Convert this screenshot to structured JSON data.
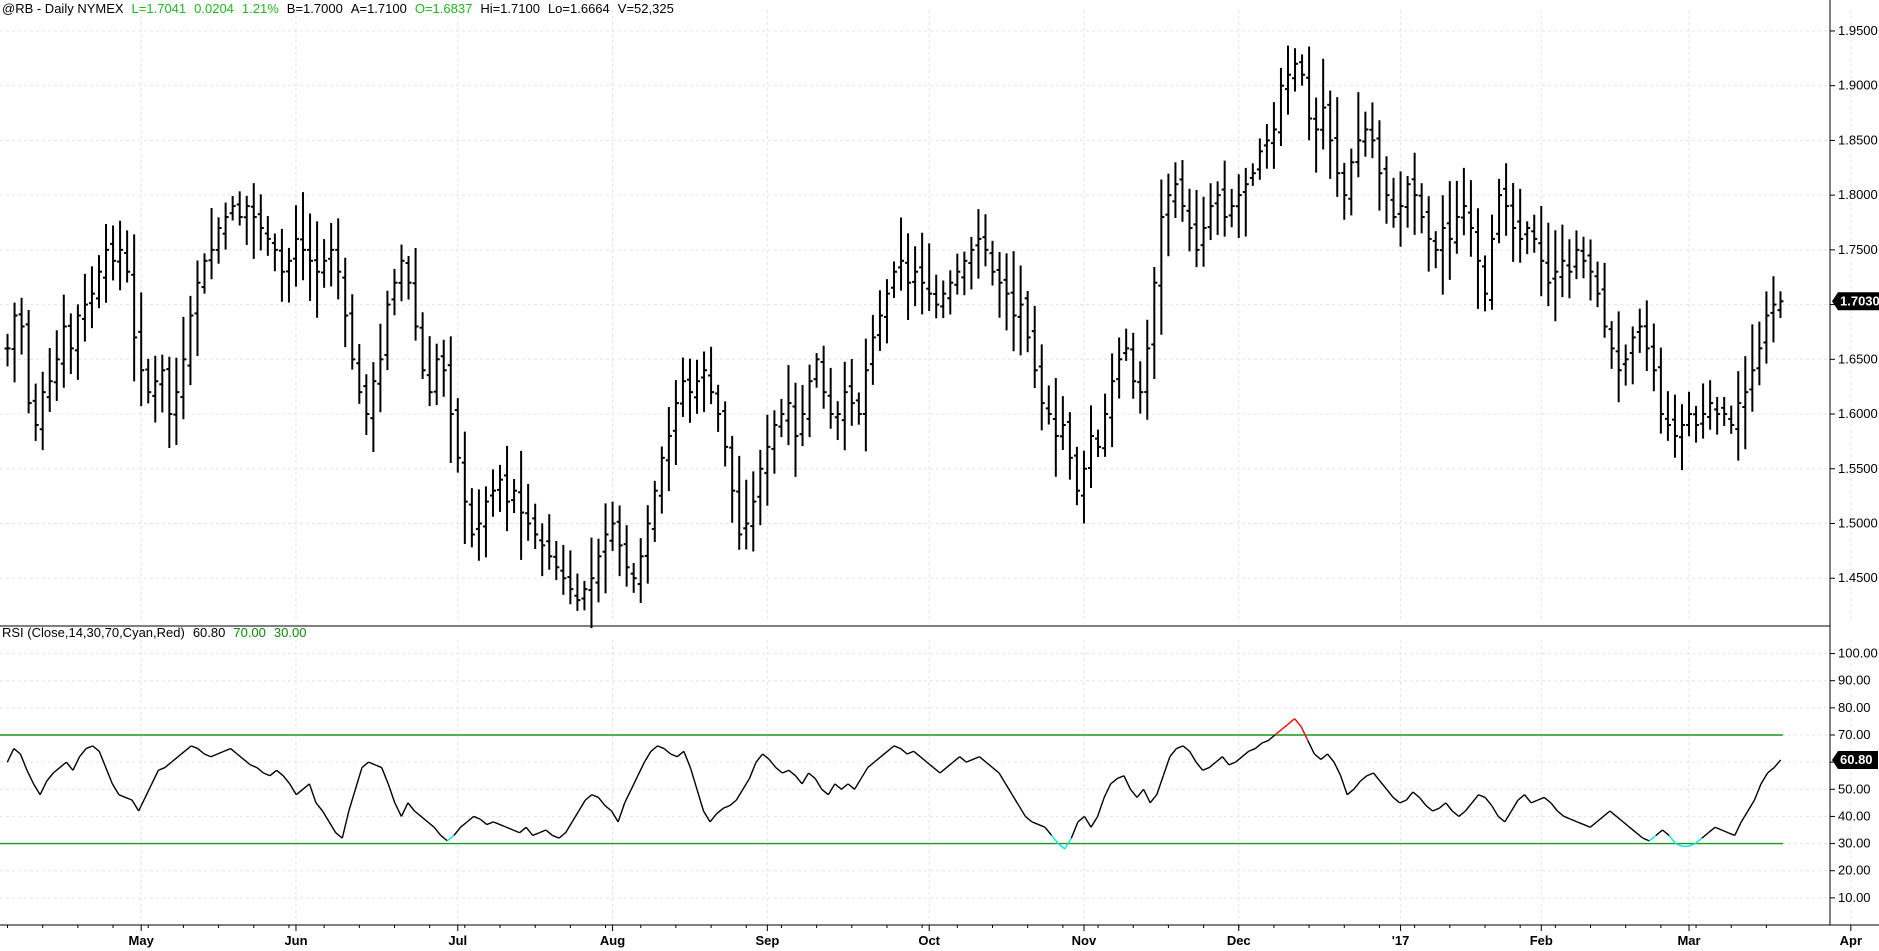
{
  "header": {
    "symbol": "@RB - Daily  NYMEX",
    "last": "L=1.7041",
    "change": "0.0204",
    "change_pct": "1.21%",
    "bid": "B=1.7000",
    "ask": "A=1.7100",
    "open": "O=1.6837",
    "high": "Hi=1.7100",
    "low": "Lo=1.6664",
    "volume": "V=52,325"
  },
  "rsi_header": {
    "label": "RSI (Close,14,30,70,Cyan,Red)",
    "value": "60.80",
    "overbought": "70.00",
    "oversold": "30.00"
  },
  "colors": {
    "bars": "#000000",
    "rsi_line": "#000000",
    "rsi_overbought": "#ff0000",
    "rsi_oversold": "#00e5e5",
    "levels": "#1a9a1a",
    "grid": "#e4e4e4",
    "highlight_green": "#1fb81f"
  },
  "chart_data": [
    {
      "type": "ohlc",
      "symbol": "@RB",
      "interval": "Daily",
      "ylim": [
        1.41,
        1.96
      ],
      "yticks": [
        "1.4500",
        "1.5000",
        "1.5500",
        "1.6000",
        "1.6500",
        "1.7000",
        "1.7500",
        "1.8000",
        "1.8500",
        "1.9000",
        "1.9500"
      ],
      "last_price_label": "1.7030",
      "last_price": 1.703,
      "xticks": [
        "May",
        "Jun",
        "Jul",
        "Aug",
        "Sep",
        "Oct",
        "Nov",
        "Dec",
        "'17",
        "Feb",
        "Mar",
        "Apr"
      ],
      "xtick_day_index": [
        19,
        41,
        64,
        86,
        108,
        131,
        153,
        175,
        198,
        218,
        239,
        262
      ],
      "closes": [
        1.66,
        1.69,
        1.68,
        1.61,
        1.59,
        1.62,
        1.63,
        1.65,
        1.68,
        1.66,
        1.69,
        1.7,
        1.71,
        1.73,
        1.75,
        1.74,
        1.75,
        1.73,
        1.67,
        1.64,
        1.62,
        1.63,
        1.64,
        1.6,
        1.62,
        1.65,
        1.69,
        1.72,
        1.74,
        1.75,
        1.77,
        1.78,
        1.79,
        1.78,
        1.79,
        1.78,
        1.77,
        1.76,
        1.75,
        1.73,
        1.74,
        1.76,
        1.75,
        1.74,
        1.73,
        1.74,
        1.75,
        1.73,
        1.69,
        1.65,
        1.62,
        1.6,
        1.63,
        1.65,
        1.7,
        1.72,
        1.74,
        1.72,
        1.68,
        1.64,
        1.62,
        1.65,
        1.64,
        1.6,
        1.56,
        1.52,
        1.49,
        1.5,
        1.52,
        1.53,
        1.54,
        1.52,
        1.53,
        1.51,
        1.5,
        1.49,
        1.48,
        1.47,
        1.46,
        1.45,
        1.44,
        1.43,
        1.44,
        1.45,
        1.47,
        1.49,
        1.5,
        1.48,
        1.46,
        1.45,
        1.47,
        1.5,
        1.53,
        1.56,
        1.58,
        1.61,
        1.63,
        1.62,
        1.63,
        1.64,
        1.62,
        1.6,
        1.57,
        1.53,
        1.49,
        1.5,
        1.52,
        1.55,
        1.57,
        1.59,
        1.6,
        1.61,
        1.58,
        1.6,
        1.63,
        1.65,
        1.62,
        1.6,
        1.6,
        1.62,
        1.61,
        1.6,
        1.64,
        1.67,
        1.69,
        1.71,
        1.73,
        1.74,
        1.72,
        1.73,
        1.72,
        1.71,
        1.7,
        1.71,
        1.72,
        1.73,
        1.74,
        1.75,
        1.76,
        1.75,
        1.73,
        1.72,
        1.71,
        1.69,
        1.7,
        1.67,
        1.64,
        1.61,
        1.6,
        1.58,
        1.59,
        1.56,
        1.53,
        1.55,
        1.58,
        1.57,
        1.6,
        1.63,
        1.65,
        1.66,
        1.63,
        1.62,
        1.66,
        1.72,
        1.78,
        1.8,
        1.81,
        1.79,
        1.77,
        1.75,
        1.77,
        1.79,
        1.8,
        1.78,
        1.79,
        1.8,
        1.81,
        1.82,
        1.84,
        1.85,
        1.86,
        1.9,
        1.91,
        1.92,
        1.91,
        1.87,
        1.86,
        1.88,
        1.85,
        1.82,
        1.8,
        1.83,
        1.85,
        1.86,
        1.85,
        1.82,
        1.8,
        1.78,
        1.79,
        1.81,
        1.8,
        1.78,
        1.76,
        1.75,
        1.77,
        1.76,
        1.78,
        1.79,
        1.77,
        1.74,
        1.71,
        1.76,
        1.8,
        1.79,
        1.77,
        1.76,
        1.77,
        1.76,
        1.74,
        1.72,
        1.73,
        1.74,
        1.73,
        1.75,
        1.74,
        1.73,
        1.71,
        1.68,
        1.66,
        1.64,
        1.65,
        1.67,
        1.68,
        1.66,
        1.64,
        1.6,
        1.59,
        1.58,
        1.59,
        1.6,
        1.59,
        1.6,
        1.61,
        1.6,
        1.6,
        1.59,
        1.61,
        1.62,
        1.64,
        1.66,
        1.69,
        1.7,
        1.703
      ],
      "xlabel": "",
      "ylabel": ""
    },
    {
      "type": "line",
      "name": "RSI (Close,14,30,70,Cyan,Red)",
      "ylim": [
        0,
        105
      ],
      "yticks": [
        "10.00",
        "20.00",
        "30.00",
        "40.00",
        "50.00",
        "60.00",
        "70.00",
        "80.00",
        "90.00",
        "100.00"
      ],
      "levels": [
        70,
        30
      ],
      "last_value_label": "60.80",
      "last_value": 60.8,
      "values": [
        60,
        65,
        63,
        57,
        52,
        48,
        53,
        56,
        58,
        60,
        57,
        62,
        65,
        66,
        64,
        58,
        52,
        48,
        47,
        46,
        42,
        47,
        52,
        57,
        58,
        60,
        62,
        64,
        66,
        65,
        63,
        62,
        63,
        64,
        65,
        63,
        61,
        59,
        58,
        56,
        55,
        57,
        55,
        52,
        48,
        50,
        52,
        45,
        42,
        38,
        34,
        32,
        42,
        50,
        58,
        60,
        59,
        58,
        52,
        45,
        40,
        45,
        42,
        40,
        38,
        36,
        33,
        31,
        33,
        36,
        38,
        40,
        39,
        37,
        38,
        37,
        36,
        35,
        34,
        36,
        33,
        34,
        35,
        33,
        32,
        34,
        38,
        42,
        46,
        48,
        47,
        44,
        42,
        38,
        45,
        50,
        55,
        60,
        64,
        66,
        65,
        63,
        62,
        64,
        58,
        50,
        42,
        38,
        41,
        43,
        44,
        46,
        50,
        54,
        60,
        63,
        61,
        58,
        56,
        57,
        55,
        52,
        56,
        54,
        50,
        48,
        52,
        50,
        52,
        50,
        54,
        58,
        60,
        62,
        64,
        66,
        65,
        63,
        64,
        62,
        60,
        58,
        56,
        58,
        60,
        62,
        60,
        61,
        62,
        60,
        58,
        56,
        52,
        48,
        44,
        40,
        38,
        37,
        36,
        33,
        30,
        28,
        32,
        38,
        40,
        36,
        40,
        47,
        52,
        54,
        55,
        50,
        47,
        50,
        45,
        48,
        55,
        62,
        65,
        66,
        64,
        60,
        57,
        58,
        60,
        62,
        59,
        60,
        62,
        64,
        65,
        67,
        68,
        70,
        72,
        74,
        76,
        73,
        68,
        63,
        61,
        63,
        60,
        55,
        48,
        50,
        53,
        55,
        56,
        53,
        50,
        47,
        45,
        46,
        49,
        47,
        44,
        42,
        43,
        45,
        42,
        40,
        42,
        45,
        48,
        47,
        44,
        40,
        38,
        42,
        46,
        48,
        45,
        46,
        47,
        45,
        42,
        40,
        39,
        38,
        37,
        36,
        38,
        40,
        42,
        40,
        38,
        36,
        34,
        32,
        31,
        33,
        35,
        33,
        30,
        29,
        29,
        30,
        32,
        34,
        36,
        35,
        34,
        33,
        38,
        42,
        46,
        52,
        56,
        58,
        60.8
      ],
      "xlabel": "",
      "ylabel": ""
    }
  ]
}
